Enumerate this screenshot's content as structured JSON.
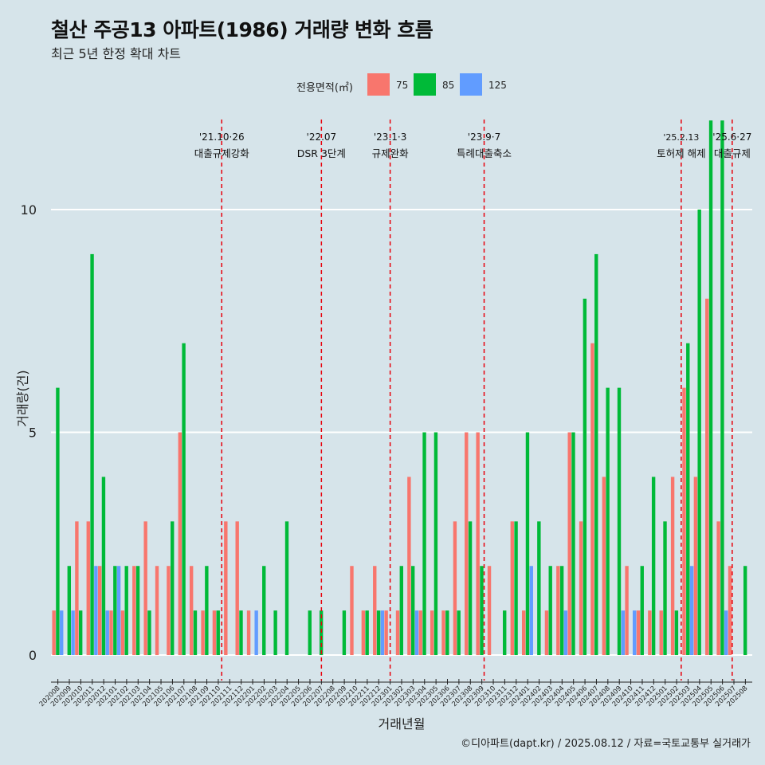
{
  "title": "철산 주공13 아파트(1986) 거래량 변화 흐름",
  "subtitle": "최근 5년 한정 확대 차트",
  "caption": "©디아파트(dapt.kr) / 2025.08.12 / 자료=국토교통부 실거래가",
  "colors": {
    "75": "#f8766d",
    "85": "#00ba38",
    "125": "#619cff",
    "background": "#d6e4ea",
    "event_line": "#e8000b"
  },
  "chart_data": {
    "type": "bar",
    "xlabel": "거래년월",
    "ylabel": "거래량(건)",
    "ylim": [
      -0.5,
      12.2
    ],
    "yticks": [
      0,
      5,
      10
    ],
    "legend": {
      "title": "전용면적(㎡)",
      "position": "top",
      "labels": [
        "75",
        "85",
        "125"
      ]
    },
    "grid": true,
    "categories": [
      "202008",
      "202009",
      "202010",
      "202011",
      "202012",
      "202101",
      "202102",
      "202103",
      "202104",
      "202105",
      "202106",
      "202107",
      "202108",
      "202109",
      "202110",
      "202111",
      "202112",
      "202201",
      "202202",
      "202203",
      "202204",
      "202205",
      "202206",
      "202207",
      "202208",
      "202209",
      "202210",
      "202211",
      "202212",
      "202301",
      "202302",
      "202303",
      "202304",
      "202305",
      "202306",
      "202307",
      "202308",
      "202309",
      "202310",
      "202311",
      "202312",
      "202401",
      "202402",
      "202403",
      "202404",
      "202405",
      "202406",
      "202407",
      "202408",
      "202409",
      "202410",
      "202411",
      "202412",
      "202501",
      "202502",
      "202503",
      "202504",
      "202505",
      "202506",
      "202507",
      "202508"
    ],
    "series": [
      {
        "name": "75",
        "values": [
          1,
          0,
          3,
          3,
          2,
          1,
          1,
          2,
          3,
          2,
          2,
          5,
          2,
          1,
          1,
          3,
          3,
          1,
          0,
          0,
          0,
          0,
          0,
          0,
          0,
          0,
          2,
          1,
          2,
          1,
          1,
          4,
          1,
          1,
          1,
          3,
          5,
          5,
          2,
          0,
          3,
          1,
          0,
          1,
          2,
          5,
          3,
          7,
          4,
          0,
          2,
          1,
          1,
          1,
          4,
          6,
          4,
          8,
          3,
          2,
          0
        ]
      },
      {
        "name": "85",
        "values": [
          6,
          2,
          1,
          9,
          4,
          2,
          2,
          2,
          1,
          0,
          3,
          7,
          1,
          2,
          1,
          0,
          1,
          0,
          2,
          1,
          3,
          0,
          1,
          1,
          0,
          1,
          0,
          1,
          1,
          0,
          2,
          2,
          5,
          5,
          1,
          1,
          3,
          2,
          0,
          1,
          3,
          5,
          3,
          2,
          2,
          5,
          8,
          9,
          6,
          6,
          0,
          2,
          4,
          3,
          1,
          7,
          10,
          12,
          12,
          0,
          2
        ]
      },
      {
        "name": "125",
        "values": [
          1,
          1,
          0,
          2,
          1,
          2,
          0,
          0,
          0,
          0,
          0,
          0,
          0,
          0,
          0,
          0,
          0,
          1,
          0,
          0,
          0,
          0,
          0,
          0,
          0,
          0,
          0,
          0,
          1,
          0,
          0,
          1,
          0,
          0,
          0,
          0,
          0,
          0,
          0,
          0,
          0,
          2,
          0,
          0,
          1,
          0,
          0,
          0,
          0,
          1,
          1,
          0,
          0,
          0,
          0,
          2,
          0,
          0,
          1,
          0,
          0
        ]
      }
    ],
    "annotations": [
      {
        "date": "'21.10·26",
        "label": "대출규제강화",
        "x": "202110",
        "offset": 0.3
      },
      {
        "date": "'22.07",
        "label": "DSR 3단계",
        "x": "202207",
        "offset": 0.0
      },
      {
        "date": "'23.1·3",
        "label": "규제완화",
        "x": "202301",
        "offset": 0.0
      },
      {
        "date": "'23.9·7",
        "label": "특례대출축소",
        "x": "202309",
        "offset": 0.2
      },
      {
        "date": "'25.2.13",
        "label": "토허제 해제",
        "x": "202502",
        "offset": 0.4
      },
      {
        "date": "'25.6·27",
        "label": "대출규제",
        "x": "202506",
        "offset": 0.85
      }
    ]
  }
}
